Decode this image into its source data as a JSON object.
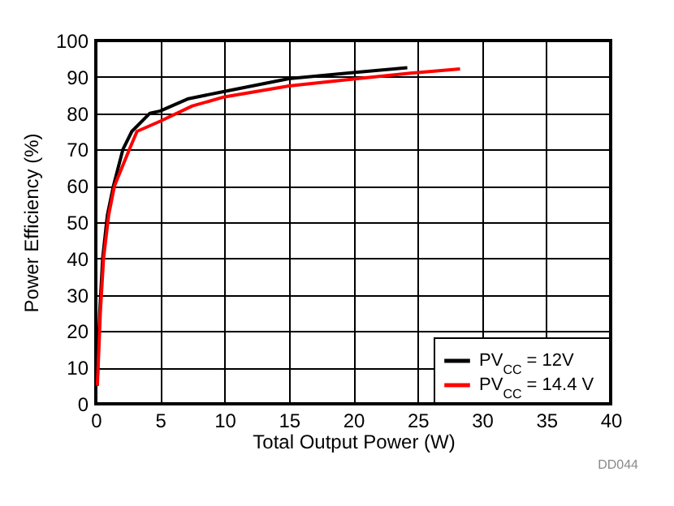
{
  "chart_data": {
    "type": "line",
    "xlabel": "Total Output Power (W)",
    "ylabel": "Power Efficiency (%)",
    "xlim": [
      0,
      40
    ],
    "xticks": [
      0,
      5,
      10,
      15,
      20,
      25,
      30,
      35,
      40
    ],
    "ylim": [
      0,
      100
    ],
    "yticks": [
      0,
      10,
      20,
      30,
      40,
      50,
      60,
      70,
      80,
      90,
      100
    ],
    "grid": true,
    "legend": "bottom right",
    "marker": "none",
    "line_style": "solid",
    "annotations": [
      "DD044"
    ],
    "series": [
      {
        "name": "PV$_{CC}$ = 12V",
        "color": "#000000",
        "x": [
          0.1,
          0.3,
          0.53,
          0.9,
          1.37,
          2.1,
          2.8,
          4.2,
          5,
          7.2,
          10,
          15,
          20,
          24.2
        ],
        "values": [
          5,
          25,
          40,
          52,
          60,
          70,
          75,
          80,
          80.6,
          84,
          86,
          89.5,
          91.2,
          92.5
        ]
      },
      {
        "name": "PV$_{CC}$ = 14.4 V",
        "color": "#ff0000",
        "x": [
          0.12,
          0.35,
          0.6,
          1.0,
          1.45,
          2.6,
          3.2,
          5,
          7.5,
          10,
          15,
          20,
          25,
          28.3
        ],
        "values": [
          5,
          25,
          40,
          52,
          60,
          70,
          75,
          77.8,
          82,
          84.5,
          87.5,
          89.4,
          91.2,
          92.2
        ]
      }
    ]
  }
}
